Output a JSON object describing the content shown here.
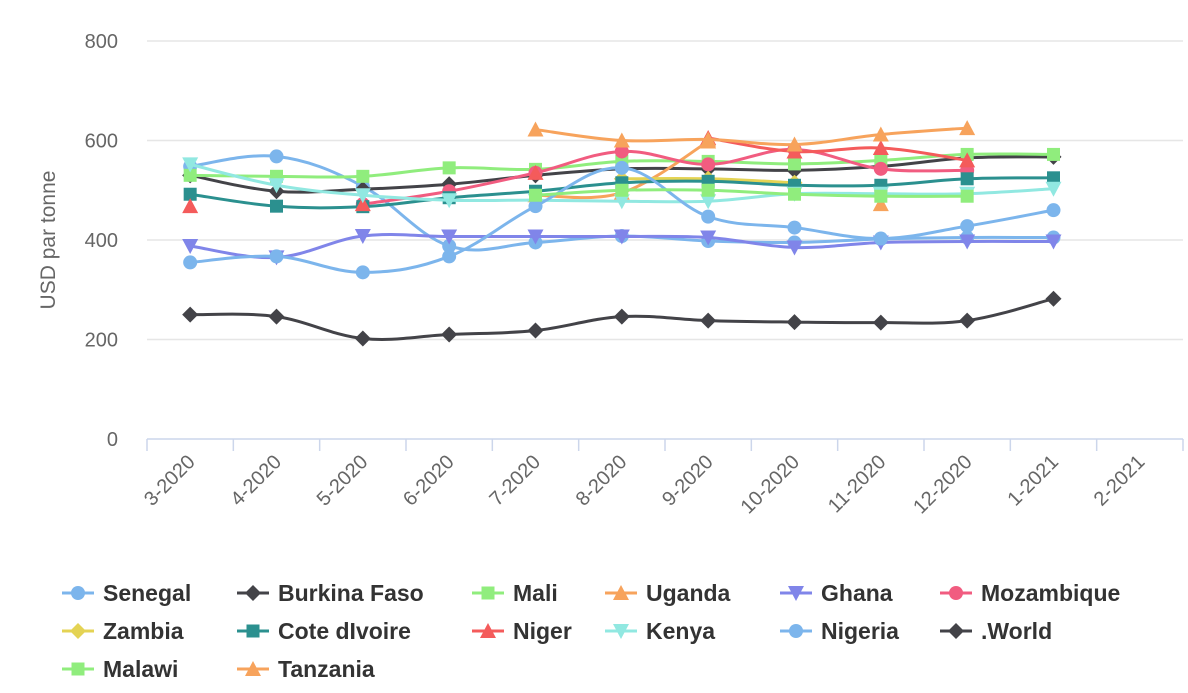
{
  "chart_data": {
    "type": "line",
    "title": "",
    "xlabel": "",
    "ylabel": "USD par tonne",
    "ylim": [
      0,
      800
    ],
    "yticks": [
      0,
      200,
      400,
      600,
      800
    ],
    "grid": true,
    "legend_position": "bottom",
    "categories": [
      "3-2020",
      "4-2020",
      "5-2020",
      "6-2020",
      "7-2020",
      "8-2020",
      "9-2020",
      "10-2020",
      "11-2020",
      "12-2020",
      "1-2021",
      "2-2021"
    ],
    "series": [
      {
        "name": "Senegal",
        "color": "#7cb5ec",
        "marker": "circle",
        "values": [
          548,
          568,
          508,
          388,
          395,
          408,
          398,
          395,
          402,
          405,
          405,
          null
        ]
      },
      {
        "name": "Burkina Faso",
        "color": "#434348",
        "marker": "diamond",
        "values": [
          530,
          498,
          502,
          512,
          530,
          543,
          543,
          540,
          548,
          565,
          567,
          null
        ]
      },
      {
        "name": "Mali",
        "color": "#90ed7d",
        "marker": "square",
        "values": [
          530,
          528,
          528,
          545,
          542,
          558,
          558,
          553,
          560,
          572,
          572,
          null
        ]
      },
      {
        "name": "Uganda",
        "color": "#f7a35c",
        "marker": "triangle",
        "values": [
          null,
          null,
          null,
          null,
          490,
          495,
          598,
          null,
          472,
          null,
          null,
          null
        ]
      },
      {
        "name": "Ghana",
        "color": "#8085e9",
        "marker": "triangle-down",
        "values": [
          388,
          365,
          408,
          407,
          407,
          407,
          405,
          385,
          395,
          397,
          397,
          null
        ]
      },
      {
        "name": "Mozambique",
        "color": "#f15c80",
        "marker": "circle",
        "values": [
          null,
          null,
          472,
          498,
          535,
          578,
          552,
          582,
          543,
          540,
          null,
          null
        ]
      },
      {
        "name": "Zambia",
        "color": "#e4d354",
        "marker": "diamond",
        "values": [
          null,
          null,
          null,
          null,
          null,
          523,
          523,
          515,
          null,
          null,
          null,
          null
        ]
      },
      {
        "name": "Cote dIvoire",
        "color": "#2b908f",
        "marker": "square",
        "values": [
          492,
          468,
          467,
          485,
          498,
          515,
          518,
          510,
          510,
          523,
          525,
          null
        ]
      },
      {
        "name": "Niger",
        "color": "#f45b5b",
        "marker": "triangle",
        "values": [
          468,
          null,
          472,
          null,
          535,
          null,
          605,
          578,
          585,
          560,
          null,
          null
        ]
      },
      {
        "name": "Kenya",
        "color": "#91e8e1",
        "marker": "triangle-down",
        "values": [
          552,
          510,
          490,
          480,
          480,
          478,
          478,
          493,
          493,
          493,
          503,
          null
        ]
      },
      {
        "name": "Nigeria",
        "color": "#7cb5ec",
        "marker": "circle",
        "values": [
          355,
          367,
          335,
          367,
          468,
          545,
          447,
          425,
          403,
          428,
          460,
          null
        ]
      },
      {
        "name": ".World",
        "color": "#434348",
        "marker": "diamond",
        "values": [
          250,
          246,
          202,
          210,
          218,
          246,
          238,
          235,
          234,
          238,
          282,
          null
        ]
      },
      {
        "name": "Malawi",
        "color": "#90ed7d",
        "marker": "square",
        "values": [
          null,
          null,
          null,
          null,
          490,
          500,
          500,
          492,
          488,
          488,
          null,
          null
        ]
      },
      {
        "name": "Tanzania",
        "color": "#f7a35c",
        "marker": "triangle",
        "values": [
          null,
          null,
          null,
          null,
          622,
          600,
          602,
          592,
          612,
          625,
          null,
          null
        ]
      }
    ]
  }
}
